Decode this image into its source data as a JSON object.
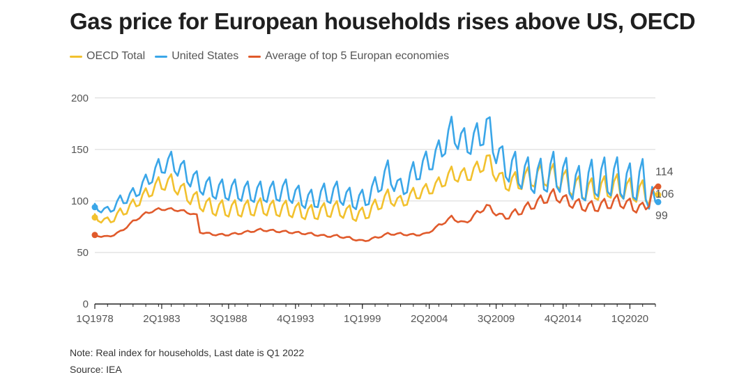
{
  "title": "Gas price for European households rises above US, OECD",
  "note": "Note: Real index for households, Last date is Q1 2022",
  "source": "Source: IEA",
  "colors": {
    "oecd": "#f2c12e",
    "us": "#3aa6e8",
    "europe": "#e05a2b",
    "grid": "#d6d6d6",
    "axis": "#222222",
    "tick": "#555555"
  },
  "chart_data": {
    "type": "line",
    "title": "Gas price for European households rises above US, OECD",
    "xlabel": "",
    "ylabel": "",
    "ylim": [
      0,
      210
    ],
    "yticks": [
      0,
      50,
      100,
      150,
      200
    ],
    "x_start": "1Q1978",
    "x_end": "1Q2022",
    "xticks": [
      "1Q1978",
      "2Q1983",
      "3Q1988",
      "4Q1993",
      "1Q1999",
      "2Q2004",
      "3Q2009",
      "4Q2014",
      "1Q2020"
    ],
    "grid": true,
    "legend_position": "top-left",
    "end_labels": [
      "114",
      "106",
      "99"
    ],
    "series": [
      {
        "name": "OECD Total",
        "color_key": "oecd",
        "end_value": 106,
        "keyframes": [
          [
            "1Q1978",
            84
          ],
          [
            "1Q1979",
            80
          ],
          [
            "1Q1980",
            88
          ],
          [
            "1Q1981",
            96
          ],
          [
            "1Q1982",
            106
          ],
          [
            "1Q1983",
            116
          ],
          [
            "1Q1984",
            118
          ],
          [
            "1Q1985",
            108
          ],
          [
            "1Q1986",
            100
          ],
          [
            "1Q1987",
            94
          ],
          [
            "1Q1988",
            92
          ],
          [
            "1Q1989",
            92
          ],
          [
            "1Q1990",
            92
          ],
          [
            "1Q1991",
            94
          ],
          [
            "1Q1992",
            92
          ],
          [
            "1Q1993",
            92
          ],
          [
            "1Q1994",
            90
          ],
          [
            "1Q1995",
            88
          ],
          [
            "1Q1996",
            90
          ],
          [
            "1Q1997",
            92
          ],
          [
            "1Q1998",
            88
          ],
          [
            "1Q1999",
            86
          ],
          [
            "1Q2000",
            94
          ],
          [
            "1Q2001",
            104
          ],
          [
            "1Q2002",
            98
          ],
          [
            "1Q2003",
            106
          ],
          [
            "1Q2004",
            110
          ],
          [
            "1Q2005",
            116
          ],
          [
            "1Q2006",
            126
          ],
          [
            "1Q2007",
            124
          ],
          [
            "1Q2008",
            130
          ],
          [
            "4Q2008",
            140
          ],
          [
            "1Q2010",
            118
          ],
          [
            "1Q2011",
            118
          ],
          [
            "1Q2012",
            122
          ],
          [
            "1Q2013",
            124
          ],
          [
            "1Q2014",
            124
          ],
          [
            "1Q2015",
            118
          ],
          [
            "1Q2016",
            112
          ],
          [
            "1Q2017",
            110
          ],
          [
            "1Q2018",
            112
          ],
          [
            "1Q2019",
            114
          ],
          [
            "1Q2020",
            110
          ],
          [
            "1Q2021",
            108
          ],
          [
            "1Q2022",
            106
          ]
        ],
        "seasonal_amplitude": [
          [
            "1Q1978",
            6
          ],
          [
            "1Q1985",
            16
          ],
          [
            "1Q1990",
            16
          ],
          [
            "1Q1999",
            14
          ],
          [
            "1Q2004",
            12
          ],
          [
            "1Q2009",
            16
          ],
          [
            "1Q2014",
            22
          ],
          [
            "1Q2022",
            22
          ]
        ]
      },
      {
        "name": "United States",
        "color_key": "us",
        "end_value": 99,
        "keyframes": [
          [
            "1Q1978",
            94
          ],
          [
            "1Q1979",
            90
          ],
          [
            "1Q1980",
            100
          ],
          [
            "1Q1981",
            106
          ],
          [
            "1Q1982",
            118
          ],
          [
            "1Q1983",
            132
          ],
          [
            "1Q1984",
            138
          ],
          [
            "1Q1985",
            128
          ],
          [
            "1Q1986",
            118
          ],
          [
            "1Q1987",
            112
          ],
          [
            "1Q1988",
            110
          ],
          [
            "1Q1989",
            110
          ],
          [
            "1Q1990",
            108
          ],
          [
            "1Q1991",
            108
          ],
          [
            "1Q1992",
            108
          ],
          [
            "1Q1993",
            110
          ],
          [
            "1Q1994",
            104
          ],
          [
            "1Q1995",
            100
          ],
          [
            "1Q1996",
            106
          ],
          [
            "1Q1997",
            108
          ],
          [
            "1Q1998",
            102
          ],
          [
            "1Q1999",
            100
          ],
          [
            "1Q2000",
            112
          ],
          [
            "1Q2001",
            128
          ],
          [
            "1Q2002",
            110
          ],
          [
            "1Q2003",
            126
          ],
          [
            "1Q2004",
            136
          ],
          [
            "1Q2005",
            146
          ],
          [
            "1Q2006",
            168
          ],
          [
            "1Q2007",
            156
          ],
          [
            "1Q2008",
            160
          ],
          [
            "4Q2008",
            172
          ],
          [
            "1Q2010",
            136
          ],
          [
            "1Q2011",
            130
          ],
          [
            "1Q2012",
            124
          ],
          [
            "1Q2013",
            122
          ],
          [
            "1Q2014",
            128
          ],
          [
            "1Q2015",
            122
          ],
          [
            "1Q2016",
            114
          ],
          [
            "1Q2017",
            120
          ],
          [
            "1Q2018",
            122
          ],
          [
            "1Q2019",
            122
          ],
          [
            "1Q2020",
            116
          ],
          [
            "1Q2021",
            120
          ],
          [
            "1Q2022",
            99
          ]
        ],
        "seasonal_amplitude": [
          [
            "1Q1978",
            6
          ],
          [
            "1Q1985",
            20
          ],
          [
            "1Q1990",
            20
          ],
          [
            "1Q1999",
            20
          ],
          [
            "1Q2004",
            22
          ],
          [
            "1Q2009",
            30
          ],
          [
            "1Q2014",
            36
          ],
          [
            "1Q2022",
            38
          ]
        ]
      },
      {
        "name": "Average of top 5 Europan economies",
        "color_key": "europe",
        "end_value": 114,
        "keyframes": [
          [
            "1Q1978",
            67
          ],
          [
            "1Q1979",
            65
          ],
          [
            "1Q1980",
            70
          ],
          [
            "1Q1981",
            80
          ],
          [
            "1Q1982",
            88
          ],
          [
            "1Q1983",
            92
          ],
          [
            "1Q1984",
            92
          ],
          [
            "1Q1985",
            90
          ],
          [
            "1Q1986",
            86
          ],
          [
            "2Q1986",
            70
          ],
          [
            "1Q1987",
            68
          ],
          [
            "1Q1988",
            67
          ],
          [
            "1Q1989",
            68
          ],
          [
            "1Q1990",
            70
          ],
          [
            "1Q1991",
            72
          ],
          [
            "1Q1992",
            71
          ],
          [
            "1Q1993",
            70
          ],
          [
            "1Q1994",
            69
          ],
          [
            "1Q1995",
            68
          ],
          [
            "1Q1996",
            66
          ],
          [
            "1Q1997",
            66
          ],
          [
            "1Q1998",
            64
          ],
          [
            "1Q1999",
            61
          ],
          [
            "1Q2000",
            64
          ],
          [
            "1Q2001",
            68
          ],
          [
            "1Q2002",
            68
          ],
          [
            "1Q2003",
            67
          ],
          [
            "1Q2004",
            68
          ],
          [
            "1Q2005",
            76
          ],
          [
            "1Q2006",
            84
          ],
          [
            "1Q2007",
            78
          ],
          [
            "1Q2008",
            88
          ],
          [
            "4Q2008",
            95
          ],
          [
            "1Q2010",
            84
          ],
          [
            "1Q2011",
            88
          ],
          [
            "1Q2012",
            94
          ],
          [
            "1Q2013",
            100
          ],
          [
            "1Q2014",
            106
          ],
          [
            "1Q2015",
            100
          ],
          [
            "1Q2016",
            96
          ],
          [
            "1Q2017",
            94
          ],
          [
            "1Q2018",
            96
          ],
          [
            "1Q2019",
            100
          ],
          [
            "1Q2020",
            96
          ],
          [
            "1Q2021",
            92
          ],
          [
            "3Q2021",
            100
          ],
          [
            "1Q2022",
            114
          ]
        ],
        "seasonal_amplitude": [
          [
            "1Q1978",
            2
          ],
          [
            "1Q1986",
            2
          ],
          [
            "1Q2004",
            2
          ],
          [
            "1Q2009",
            5
          ],
          [
            "1Q2013",
            10
          ],
          [
            "1Q2022",
            12
          ]
        ]
      }
    ]
  }
}
